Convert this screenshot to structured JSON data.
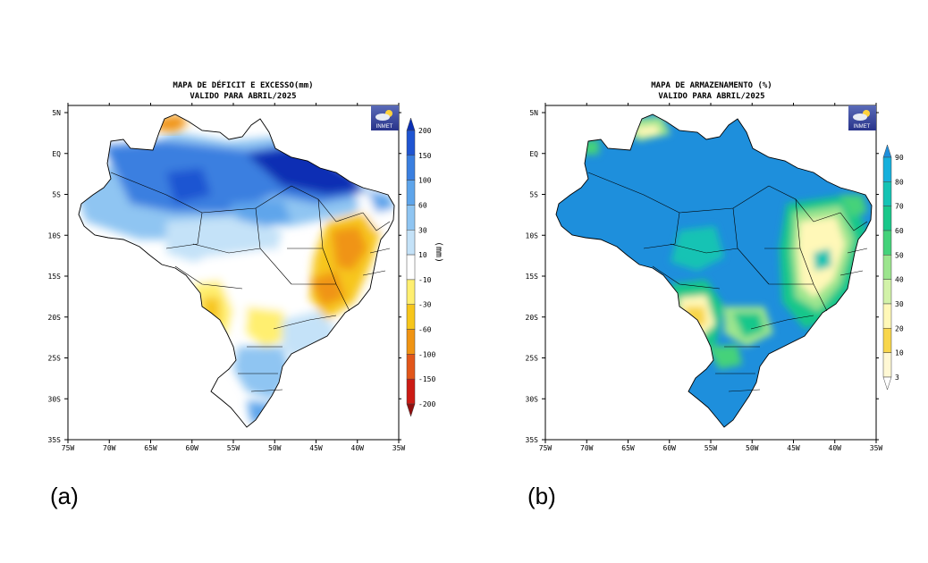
{
  "panels": [
    {
      "id": "a",
      "label": "(a)",
      "title_line1": "MAPA DE DÉFICIT E EXCESSO(mm)",
      "title_line2": "VALIDO PARA ABRIL/2025",
      "unit": "(mm)",
      "logo_text": "INMET",
      "x_ticks": [
        "75W",
        "70W",
        "65W",
        "60W",
        "55W",
        "50W",
        "45W",
        "40W",
        "35W"
      ],
      "y_ticks": [
        "5N",
        "EQ",
        "5S",
        "10S",
        "15S",
        "20S",
        "25S",
        "30S",
        "35S"
      ],
      "colorbar_labels": [
        "200",
        "150",
        "100",
        "60",
        "30",
        "10",
        "-10",
        "-30",
        "-60",
        "-100",
        "-150",
        "-200"
      ],
      "colorbar_colors": [
        "#0a2fb4",
        "#1f55d2",
        "#3a7fe0",
        "#5ea5eb",
        "#8fc5f2",
        "#c4e2f8",
        "#ffffff",
        "#ffef70",
        "#f7c61b",
        "#f09413",
        "#e2561a",
        "#cc1b14",
        "#8f0f0f"
      ]
    },
    {
      "id": "b",
      "label": "(b)",
      "title_line1": "MAPA DE ARMAZENAMENTO (%)",
      "title_line2": "VALIDO PARA ABRIL/2025",
      "logo_text": "INMET",
      "x_ticks": [
        "75W",
        "70W",
        "65W",
        "60W",
        "55W",
        "50W",
        "45W",
        "40W",
        "35W"
      ],
      "y_ticks": [
        "5N",
        "EQ",
        "5S",
        "10S",
        "15S",
        "20S",
        "25S",
        "30S",
        "35S"
      ],
      "colorbar_labels": [
        "90",
        "80",
        "70",
        "60",
        "50",
        "40",
        "30",
        "20",
        "10",
        "3"
      ],
      "colorbar_colors": [
        "#1e8fdc",
        "#16b0dc",
        "#14c3b4",
        "#19c78a",
        "#44d27a",
        "#9ce58e",
        "#d2f2a8",
        "#fff8b8",
        "#f8d64c",
        "#fff8d4",
        "#ffffff"
      ]
    }
  ]
}
